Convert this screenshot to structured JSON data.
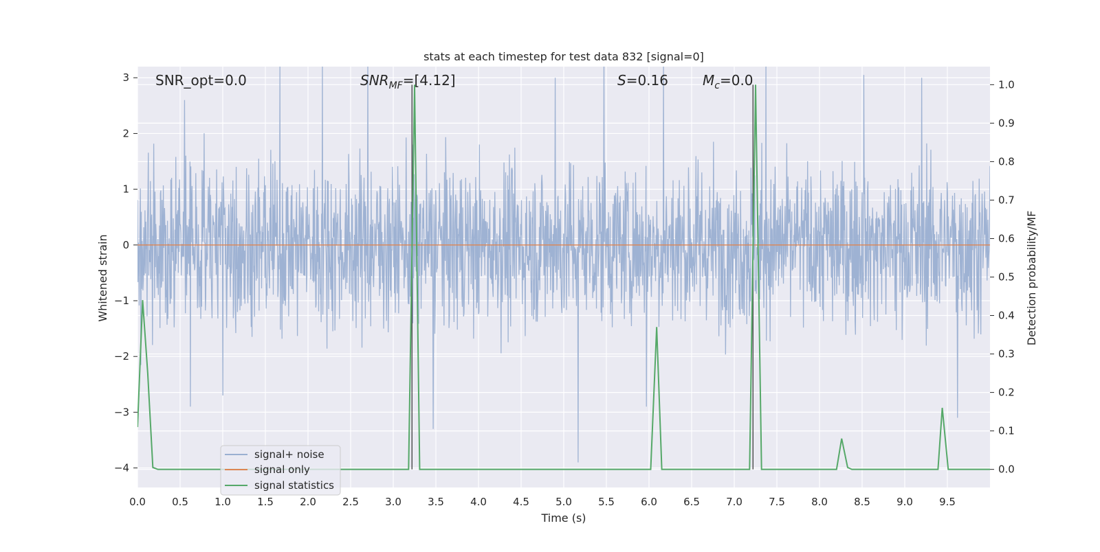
{
  "chart_data": {
    "type": "line",
    "title": "stats at each timestep for test data 832 [signal=0]",
    "xlabel": "Time (s)",
    "ylabel": "Whitened strain",
    "ylabel_right": "Detection probability/MF",
    "xlim": [
      0,
      10
    ],
    "ylim": [
      -4.35,
      3.2
    ],
    "ylim_right": [
      -0.047,
      1.047
    ],
    "x_ticks": [
      "0.0",
      "0.5",
      "1.0",
      "1.5",
      "2.0",
      "2.5",
      "3.0",
      "3.5",
      "4.0",
      "4.5",
      "5.0",
      "5.5",
      "6.0",
      "6.5",
      "7.0",
      "7.5",
      "8.0",
      "8.5",
      "9.0",
      "9.5"
    ],
    "y_ticks": [
      "-4",
      "-3",
      "-2",
      "-1",
      "0",
      "1",
      "2",
      "3"
    ],
    "y_ticks_right": [
      "0.0",
      "0.1",
      "0.2",
      "0.3",
      "0.4",
      "0.5",
      "0.6",
      "0.7",
      "0.8",
      "0.9",
      "1.0"
    ],
    "grid": true,
    "legend_position": "lower-left",
    "annotations": {
      "snr_opt": "SNR_opt=0.0",
      "snr_mf_sym": "SNR",
      "snr_mf_sub": "MF",
      "snr_mf_val": "=[4.12]",
      "s_sym": "S",
      "s_val": "=0.16",
      "mc_sym": "M",
      "mc_sub": "c",
      "mc_val": "=0.0"
    },
    "vertical_lines_x": [
      3.22,
      7.22
    ],
    "series": [
      {
        "name": "signal+ noise",
        "axis": "left",
        "color": "#9aafd1",
        "description": "whitened noise, roughly within -2 to +2 with spikes up to about 3.5 and down to about -3.9",
        "spike_samples": [
          {
            "x": 0.55,
            "y": 2.6
          },
          {
            "x": 0.62,
            "y": -2.9
          },
          {
            "x": 1.0,
            "y": -2.7
          },
          {
            "x": 1.67,
            "y": 3.2
          },
          {
            "x": 2.17,
            "y": 3.2
          },
          {
            "x": 2.7,
            "y": 3.2
          },
          {
            "x": 3.47,
            "y": -3.3
          },
          {
            "x": 4.9,
            "y": 3.0
          },
          {
            "x": 5.17,
            "y": -3.9
          },
          {
            "x": 5.47,
            "y": 3.45
          },
          {
            "x": 5.97,
            "y": -2.9
          },
          {
            "x": 6.17,
            "y": 3.2
          },
          {
            "x": 7.37,
            "y": 3.3
          },
          {
            "x": 8.52,
            "y": 3.05
          },
          {
            "x": 9.2,
            "y": 3.0
          },
          {
            "x": 9.62,
            "y": -3.1
          }
        ]
      },
      {
        "name": "signal only",
        "axis": "left",
        "color": "#dd8452",
        "x": [
          0,
          10
        ],
        "y": [
          0,
          0
        ]
      },
      {
        "name": "signal statistics",
        "axis": "right",
        "color": "#55a868",
        "x": [
          0.0,
          0.06,
          0.12,
          0.18,
          0.24,
          0.3,
          3.18,
          3.25,
          3.31,
          6.02,
          6.09,
          6.15,
          7.18,
          7.25,
          7.32,
          8.2,
          8.26,
          8.33,
          8.38,
          9.39,
          9.44,
          9.51,
          10.0
        ],
        "y": [
          0.11,
          0.44,
          0.25,
          0.005,
          0.0,
          0.0,
          0.0,
          1.0,
          0.0,
          0.0,
          0.37,
          0.0,
          0.0,
          1.0,
          0.0,
          0.0,
          0.08,
          0.005,
          0.0,
          0.0,
          0.16,
          0.0,
          0.0
        ]
      }
    ]
  }
}
